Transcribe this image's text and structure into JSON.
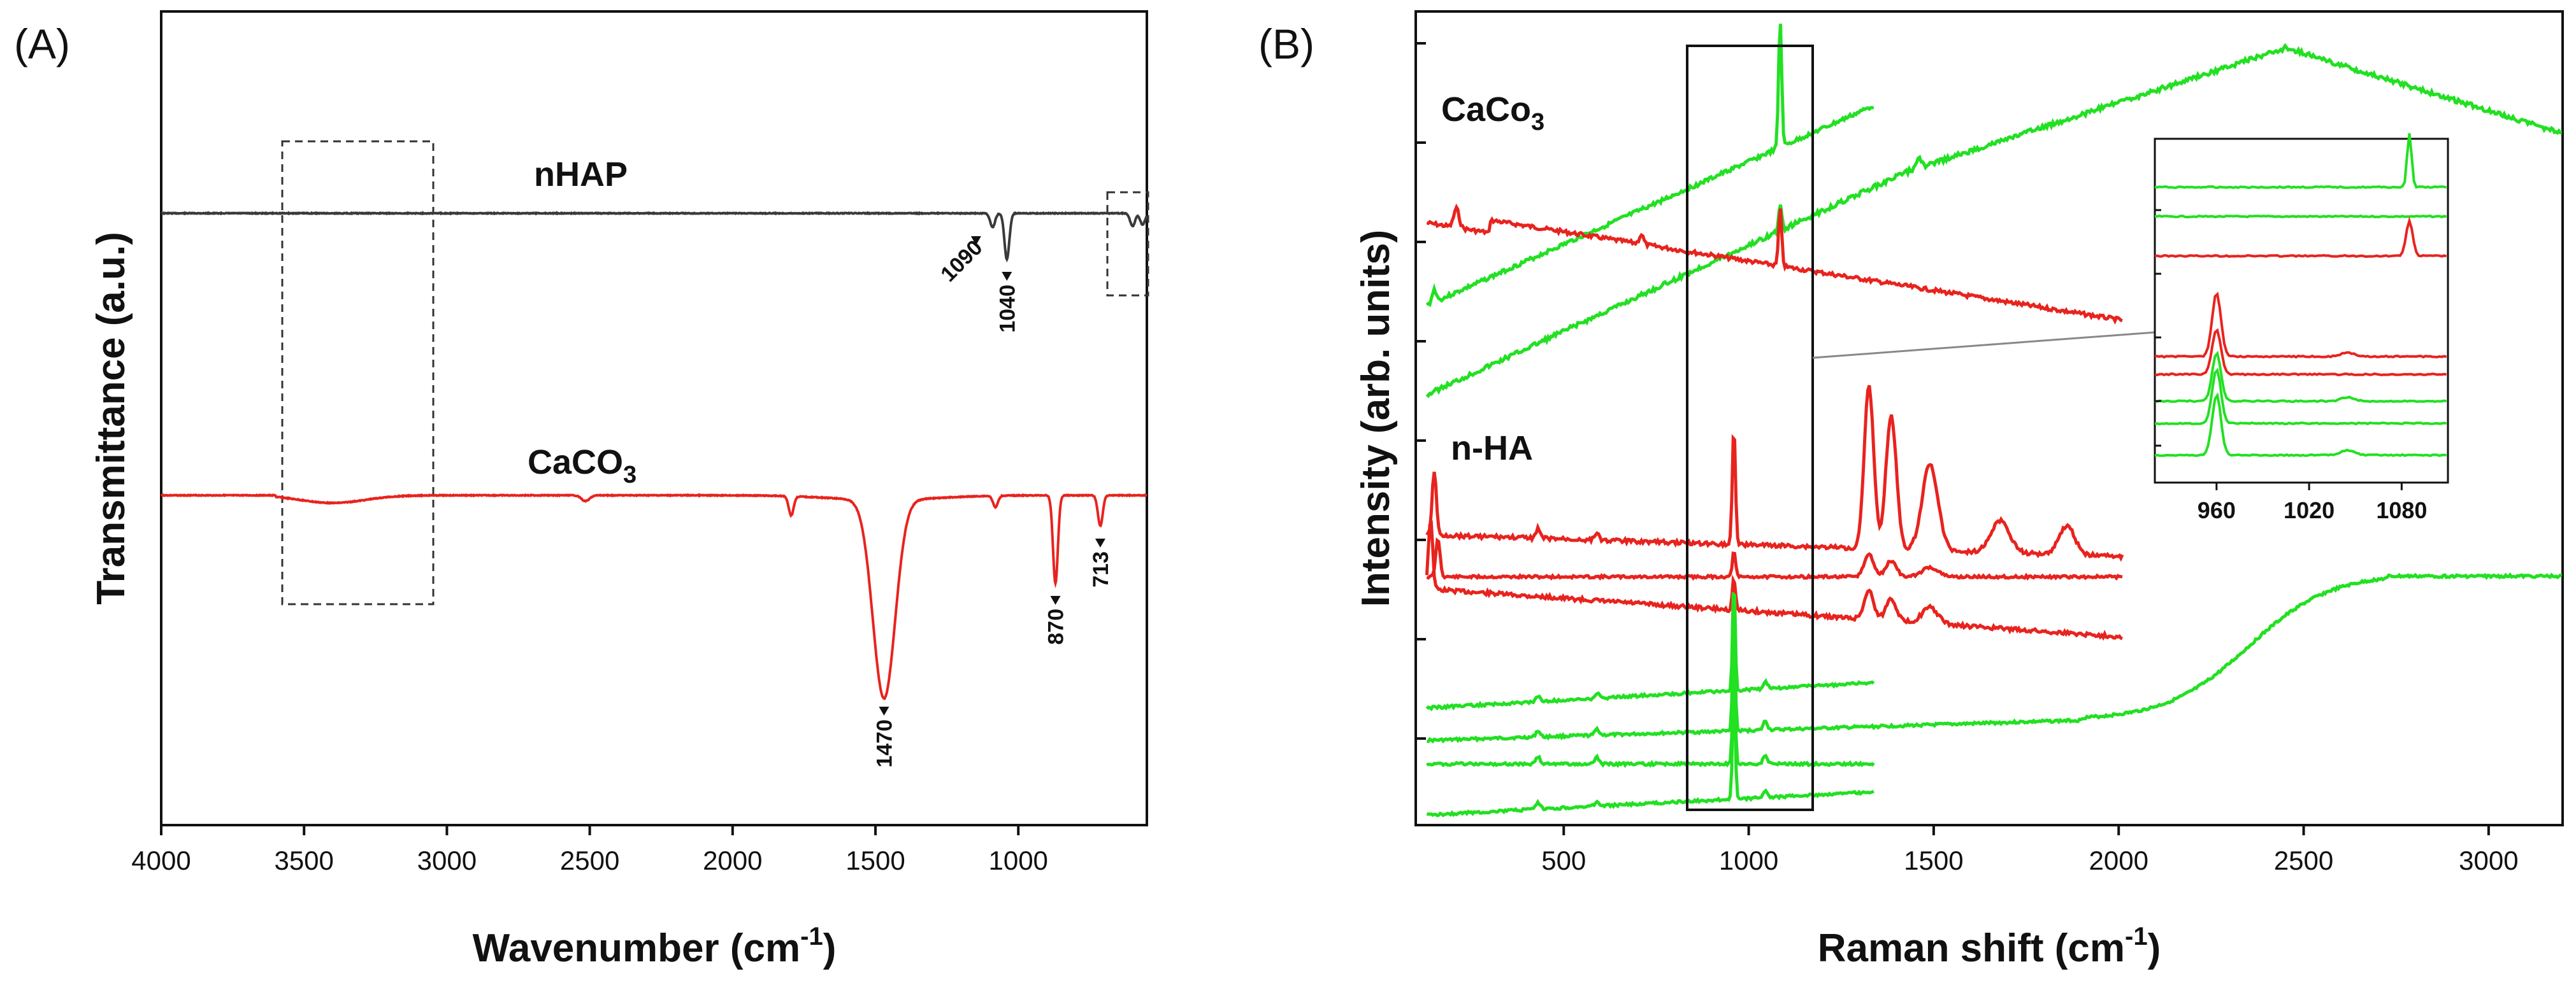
{
  "chart_data": [
    {
      "panel": "(A)",
      "type": "line",
      "title": "",
      "xlabel": "Wavenumber (cm-1)",
      "xlabel_main": "Wavenumber (cm",
      "xlabel_sup": "-1",
      "xlabel_end": ")",
      "ylabel": "Transmittance (a.u.)",
      "xlim": [
        4000,
        550
      ],
      "x_reversed": true,
      "xticks": [
        "4000",
        "3500",
        "3000",
        "2500",
        "2000",
        "1500",
        "1000"
      ],
      "series": [
        {
          "name": "nHAP",
          "label": "nHAP",
          "color": "#3a3a3a",
          "baseline": 1.0,
          "peaks": [
            {
              "x": 1090,
              "depth": 0.11,
              "label": "1090"
            },
            {
              "x": 1040,
              "depth": 0.36,
              "label": "1040"
            },
            {
              "x": 600,
              "depth": 0.1
            },
            {
              "x": 565,
              "depth": 0.09
            }
          ]
        },
        {
          "name": "CaCO3",
          "label_main": "CaCO",
          "label_sub": "3",
          "color": "#e8231e",
          "baseline": 0.0,
          "peaks": [
            {
              "x": 1470,
              "depth": 0.52,
              "label": "1470"
            },
            {
              "x": 870,
              "depth": 0.23,
              "label": "870"
            },
            {
              "x": 713,
              "depth": 0.08,
              "label": "713"
            },
            {
              "x": 1795,
              "depth": 0.05
            },
            {
              "x": 1080,
              "depth": 0.03
            }
          ]
        }
      ],
      "annotations": [
        "dashed box 3550-3050 cm-1",
        "dashed box 670-550 cm-1"
      ]
    },
    {
      "panel": "(B)",
      "type": "line",
      "title": "",
      "xlabel": "Raman shift (cm-1)",
      "xlabel_main": "Raman shift (cm",
      "xlabel_sup": "-1",
      "xlabel_end": ")",
      "ylabel": "Intensity (arb. units)",
      "xlim": [
        100,
        3200
      ],
      "xticks": [
        "500",
        "1000",
        "1500",
        "2000",
        "2500",
        "3000"
      ],
      "groups": [
        {
          "name": "CaCo3",
          "label_main": "CaCo",
          "label_sub": "3",
          "peak": 1085,
          "series_colors": [
            "#22e022",
            "#22e022",
            "#e8231e"
          ]
        },
        {
          "name": "n-HA",
          "label": "n-HA",
          "peak": 960,
          "series_colors": [
            "#e8231e",
            "#e8231e",
            "#e8231e",
            "#22e022",
            "#22e022",
            "#22e022",
            "#22e022"
          ]
        }
      ],
      "highlight_box": [
        820,
        1170
      ],
      "inset": {
        "xticks": [
          "960",
          "1020",
          "1080"
        ],
        "xlim": [
          920,
          1110
        ]
      }
    }
  ]
}
